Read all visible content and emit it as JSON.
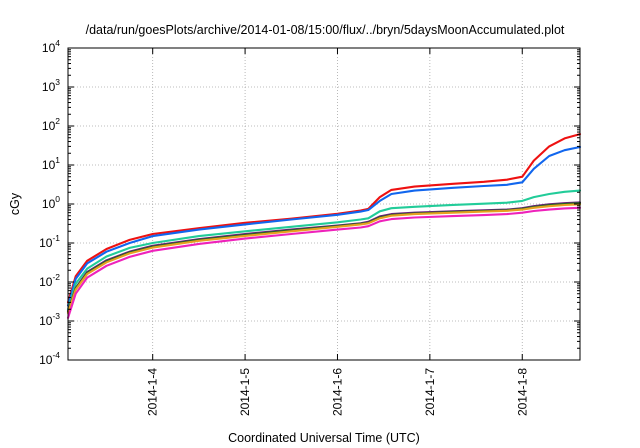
{
  "chart_data": {
    "type": "line",
    "title": "/data/run/goesPlots/archive/2014-01-08/15:00/flux/../bryn/5daysMoonAccumulated.plot",
    "xlabel": "Coordinated Universal Time (UTC)",
    "ylabel": "cGy",
    "y_scale": "log",
    "ylim": [
      0.0001,
      10000
    ],
    "y_ticks": [
      {
        "base": "10",
        "exp": "-4"
      },
      {
        "base": "10",
        "exp": "-3"
      },
      {
        "base": "10",
        "exp": "-2"
      },
      {
        "base": "10",
        "exp": "-1"
      },
      {
        "base": "10",
        "exp": "0"
      },
      {
        "base": "10",
        "exp": "1"
      },
      {
        "base": "10",
        "exp": "2"
      },
      {
        "base": "10",
        "exp": "3"
      },
      {
        "base": "10",
        "exp": "4"
      }
    ],
    "xlim": [
      "2014-01-03T02:00",
      "2014-01-08T15:00"
    ],
    "x_ticks": [
      "2014-1-4",
      "2014-1-5",
      "2014-1-6",
      "2014-1-7",
      "2014-1-8"
    ],
    "grid": true,
    "legend": "none",
    "series": [
      {
        "color": "#ee1111",
        "points": [
          [
            "2014-01-03T02:00",
            0.003
          ],
          [
            "2014-01-03T04:00",
            0.014
          ],
          [
            "2014-01-03T07:00",
            0.035
          ],
          [
            "2014-01-03T12:00",
            0.07
          ],
          [
            "2014-01-03T18:00",
            0.12
          ],
          [
            "2014-01-04T00:00",
            0.17
          ],
          [
            "2014-01-04T12:00",
            0.24
          ],
          [
            "2014-01-05T00:00",
            0.33
          ],
          [
            "2014-01-05T12:00",
            0.42
          ],
          [
            "2014-01-06T00:00",
            0.56
          ],
          [
            "2014-01-06T06:00",
            0.68
          ],
          [
            "2014-01-06T08:00",
            0.75
          ],
          [
            "2014-01-06T11:00",
            1.5
          ],
          [
            "2014-01-06T14:00",
            2.3
          ],
          [
            "2014-01-06T20:00",
            2.8
          ],
          [
            "2014-01-07T06:00",
            3.3
          ],
          [
            "2014-01-07T14:00",
            3.7
          ],
          [
            "2014-01-07T20:00",
            4.2
          ],
          [
            "2014-01-08T00:00",
            5
          ],
          [
            "2014-01-08T03:00",
            13
          ],
          [
            "2014-01-08T07:00",
            30
          ],
          [
            "2014-01-08T11:00",
            48
          ],
          [
            "2014-01-08T15:00",
            62
          ]
        ]
      },
      {
        "color": "#1166ee",
        "points": [
          [
            "2014-01-03T02:00",
            0.0025
          ],
          [
            "2014-01-03T04:00",
            0.012
          ],
          [
            "2014-01-03T07:00",
            0.03
          ],
          [
            "2014-01-03T12:00",
            0.06
          ],
          [
            "2014-01-03T18:00",
            0.1
          ],
          [
            "2014-01-04T00:00",
            0.15
          ],
          [
            "2014-01-04T12:00",
            0.22
          ],
          [
            "2014-01-05T00:00",
            0.3
          ],
          [
            "2014-01-05T12:00",
            0.4
          ],
          [
            "2014-01-06T00:00",
            0.53
          ],
          [
            "2014-01-06T06:00",
            0.64
          ],
          [
            "2014-01-06T08:00",
            0.7
          ],
          [
            "2014-01-06T11:00",
            1.2
          ],
          [
            "2014-01-06T14:00",
            1.8
          ],
          [
            "2014-01-06T20:00",
            2.2
          ],
          [
            "2014-01-07T06:00",
            2.6
          ],
          [
            "2014-01-07T14:00",
            2.9
          ],
          [
            "2014-01-07T20:00",
            3.1
          ],
          [
            "2014-01-08T00:00",
            3.6
          ],
          [
            "2014-01-08T03:00",
            8
          ],
          [
            "2014-01-08T07:00",
            17
          ],
          [
            "2014-01-08T11:00",
            24
          ],
          [
            "2014-01-08T15:00",
            29
          ]
        ]
      },
      {
        "color": "#22cc99",
        "points": [
          [
            "2014-01-03T02:00",
            0.002
          ],
          [
            "2014-01-03T04:00",
            0.009
          ],
          [
            "2014-01-03T07:00",
            0.022
          ],
          [
            "2014-01-03T12:00",
            0.045
          ],
          [
            "2014-01-03T18:00",
            0.075
          ],
          [
            "2014-01-04T00:00",
            0.1
          ],
          [
            "2014-01-04T12:00",
            0.15
          ],
          [
            "2014-01-05T00:00",
            0.2
          ],
          [
            "2014-01-05T12:00",
            0.26
          ],
          [
            "2014-01-06T00:00",
            0.34
          ],
          [
            "2014-01-06T06:00",
            0.4
          ],
          [
            "2014-01-06T08:00",
            0.43
          ],
          [
            "2014-01-06T11:00",
            0.65
          ],
          [
            "2014-01-06T14:00",
            0.78
          ],
          [
            "2014-01-06T20:00",
            0.85
          ],
          [
            "2014-01-07T06:00",
            0.95
          ],
          [
            "2014-01-07T14:00",
            1.02
          ],
          [
            "2014-01-07T20:00",
            1.08
          ],
          [
            "2014-01-08T00:00",
            1.2
          ],
          [
            "2014-01-08T03:00",
            1.5
          ],
          [
            "2014-01-08T07:00",
            1.8
          ],
          [
            "2014-01-08T11:00",
            2.05
          ],
          [
            "2014-01-08T15:00",
            2.2
          ]
        ]
      },
      {
        "color": "#6a1f7a",
        "points": [
          [
            "2014-01-03T02:00",
            0.0018
          ],
          [
            "2014-01-03T04:00",
            0.007
          ],
          [
            "2014-01-03T07:00",
            0.018
          ],
          [
            "2014-01-03T12:00",
            0.036
          ],
          [
            "2014-01-03T18:00",
            0.06
          ],
          [
            "2014-01-04T00:00",
            0.085
          ],
          [
            "2014-01-04T12:00",
            0.125
          ],
          [
            "2014-01-05T00:00",
            0.17
          ],
          [
            "2014-01-05T12:00",
            0.22
          ],
          [
            "2014-01-06T00:00",
            0.28
          ],
          [
            "2014-01-06T06:00",
            0.32
          ],
          [
            "2014-01-06T08:00",
            0.35
          ],
          [
            "2014-01-06T11:00",
            0.48
          ],
          [
            "2014-01-06T14:00",
            0.55
          ],
          [
            "2014-01-06T20:00",
            0.6
          ],
          [
            "2014-01-07T06:00",
            0.65
          ],
          [
            "2014-01-07T14:00",
            0.69
          ],
          [
            "2014-01-07T20:00",
            0.72
          ],
          [
            "2014-01-08T00:00",
            0.78
          ],
          [
            "2014-01-08T03:00",
            0.88
          ],
          [
            "2014-01-08T07:00",
            0.98
          ],
          [
            "2014-01-08T11:00",
            1.05
          ],
          [
            "2014-01-08T15:00",
            1.1
          ]
        ]
      },
      {
        "color": "#226622",
        "points": [
          [
            "2014-01-03T02:00",
            0.0017
          ],
          [
            "2014-01-03T04:00",
            0.0068
          ],
          [
            "2014-01-03T07:00",
            0.017
          ],
          [
            "2014-01-03T12:00",
            0.034
          ],
          [
            "2014-01-03T18:00",
            0.057
          ],
          [
            "2014-01-04T00:00",
            0.08
          ],
          [
            "2014-01-04T12:00",
            0.12
          ],
          [
            "2014-01-05T00:00",
            0.16
          ],
          [
            "2014-01-05T12:00",
            0.21
          ],
          [
            "2014-01-06T00:00",
            0.27
          ],
          [
            "2014-01-06T06:00",
            0.31
          ],
          [
            "2014-01-06T08:00",
            0.33
          ],
          [
            "2014-01-06T11:00",
            0.45
          ],
          [
            "2014-01-06T14:00",
            0.52
          ],
          [
            "2014-01-06T20:00",
            0.57
          ],
          [
            "2014-01-07T06:00",
            0.62
          ],
          [
            "2014-01-07T14:00",
            0.66
          ],
          [
            "2014-01-07T20:00",
            0.69
          ],
          [
            "2014-01-08T00:00",
            0.75
          ],
          [
            "2014-01-08T03:00",
            0.84
          ],
          [
            "2014-01-08T07:00",
            0.93
          ],
          [
            "2014-01-08T11:00",
            1.0
          ],
          [
            "2014-01-08T15:00",
            1.05
          ]
        ]
      },
      {
        "color": "#e8a020",
        "points": [
          [
            "2014-01-03T02:00",
            0.0016
          ],
          [
            "2014-01-03T04:00",
            0.0064
          ],
          [
            "2014-01-03T07:00",
            0.016
          ],
          [
            "2014-01-03T12:00",
            0.032
          ],
          [
            "2014-01-03T18:00",
            0.054
          ],
          [
            "2014-01-04T00:00",
            0.076
          ],
          [
            "2014-01-04T12:00",
            0.114
          ],
          [
            "2014-01-05T00:00",
            0.152
          ],
          [
            "2014-01-05T12:00",
            0.2
          ],
          [
            "2014-01-06T00:00",
            0.26
          ],
          [
            "2014-01-06T06:00",
            0.3
          ],
          [
            "2014-01-06T08:00",
            0.32
          ],
          [
            "2014-01-06T11:00",
            0.43
          ],
          [
            "2014-01-06T14:00",
            0.5
          ],
          [
            "2014-01-06T20:00",
            0.55
          ],
          [
            "2014-01-07T06:00",
            0.6
          ],
          [
            "2014-01-07T14:00",
            0.64
          ],
          [
            "2014-01-07T20:00",
            0.67
          ],
          [
            "2014-01-08T00:00",
            0.72
          ],
          [
            "2014-01-08T03:00",
            0.8
          ],
          [
            "2014-01-08T07:00",
            0.88
          ],
          [
            "2014-01-08T11:00",
            0.94
          ],
          [
            "2014-01-08T15:00",
            0.98
          ]
        ]
      },
      {
        "color": "#ee22bb",
        "points": [
          [
            "2014-01-03T02:00",
            0.0012
          ],
          [
            "2014-01-03T04:00",
            0.005
          ],
          [
            "2014-01-03T07:00",
            0.013
          ],
          [
            "2014-01-03T12:00",
            0.026
          ],
          [
            "2014-01-03T18:00",
            0.044
          ],
          [
            "2014-01-04T00:00",
            0.063
          ],
          [
            "2014-01-04T12:00",
            0.095
          ],
          [
            "2014-01-05T00:00",
            0.13
          ],
          [
            "2014-01-05T12:00",
            0.17
          ],
          [
            "2014-01-06T00:00",
            0.22
          ],
          [
            "2014-01-06T06:00",
            0.25
          ],
          [
            "2014-01-06T08:00",
            0.27
          ],
          [
            "2014-01-06T11:00",
            0.36
          ],
          [
            "2014-01-06T14:00",
            0.41
          ],
          [
            "2014-01-06T20:00",
            0.45
          ],
          [
            "2014-01-07T06:00",
            0.49
          ],
          [
            "2014-01-07T14:00",
            0.52
          ],
          [
            "2014-01-07T20:00",
            0.55
          ],
          [
            "2014-01-08T00:00",
            0.6
          ],
          [
            "2014-01-08T03:00",
            0.66
          ],
          [
            "2014-01-08T07:00",
            0.72
          ],
          [
            "2014-01-08T11:00",
            0.77
          ],
          [
            "2014-01-08T15:00",
            0.8
          ]
        ]
      }
    ]
  }
}
